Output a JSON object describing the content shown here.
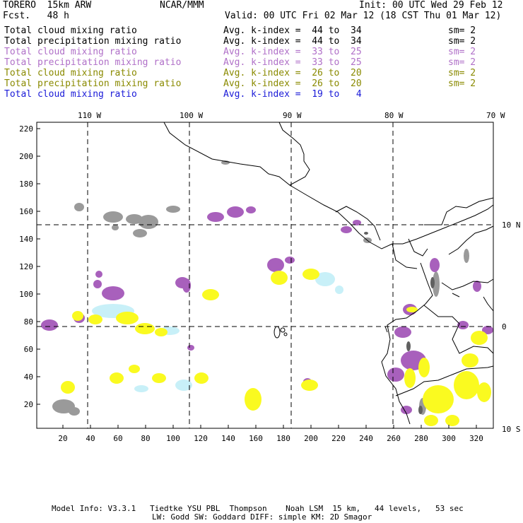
{
  "header": {
    "model": "TORERO  15km ARW",
    "org": "NCAR/MMM",
    "init": "Init: 00 UTC Wed 29 Feb 12",
    "fcst": "Fcst.   48 h",
    "valid": "Valid: 00 UTC Fri 02 Mar 12 (18 CST Thu 01 Mar 12)"
  },
  "legend": [
    {
      "field": "Total cloud mixing ratio",
      "kindex": "Avg. k-index =  44 to  34",
      "sm": "sm= 2",
      "color": "#000000"
    },
    {
      "field": "Total precipitation mixing ratio",
      "kindex": "Avg. k-index =  44 to  34",
      "sm": "sm= 2",
      "color": "#000000"
    },
    {
      "field": "Total cloud mixing ratio",
      "kindex": "Avg. k-index =  33 to  25",
      "sm": "sm= 2",
      "color": "#b070c8"
    },
    {
      "field": "Total precipitation mixing ratio",
      "kindex": "Avg. k-index =  33 to  25",
      "sm": "sm= 2",
      "color": "#b070c8"
    },
    {
      "field": "Total cloud mixing ratio",
      "kindex": "Avg. k-index =  26 to  20",
      "sm": "sm= 2",
      "color": "#8a8a00"
    },
    {
      "field": "Total precipitation mixing ratio",
      "kindex": "Avg. k-index =  26 to  20",
      "sm": "sm= 2",
      "color": "#8a8a00"
    },
    {
      "field": "Total cloud mixing ratio",
      "kindex": "Avg. k-index =  19 to   4",
      "sm": "",
      "color": "#1a1ad8"
    }
  ],
  "map": {
    "lon_labels": [
      "110 W",
      "100 W",
      "90 W",
      "80 W",
      "70 W"
    ],
    "lat_labels": [
      "10 N",
      "0",
      "10 S"
    ],
    "y_ticks": [
      "220",
      "200",
      "180",
      "160",
      "140",
      "120",
      "100",
      "80",
      "60",
      "40",
      "20"
    ],
    "x_ticks": [
      "20",
      "40",
      "60",
      "80",
      "100",
      "120",
      "140",
      "160",
      "180",
      "200",
      "220",
      "240",
      "260",
      "280",
      "300",
      "320"
    ],
    "colors": {
      "gray": "#9a9a9a",
      "purple": "#a860bc",
      "yellow": "#fafa20",
      "cyan": "#c8f0f8",
      "dark": "#606060"
    }
  },
  "footer": {
    "line1": "Model Info: V3.3.1   Tiedtke YSU PBL  Thompson    Noah LSM  15 km,   44 levels,   53 sec",
    "line2": "LW: Godd SW: Goddard DIFF: simple KM: 2D Smagor"
  }
}
